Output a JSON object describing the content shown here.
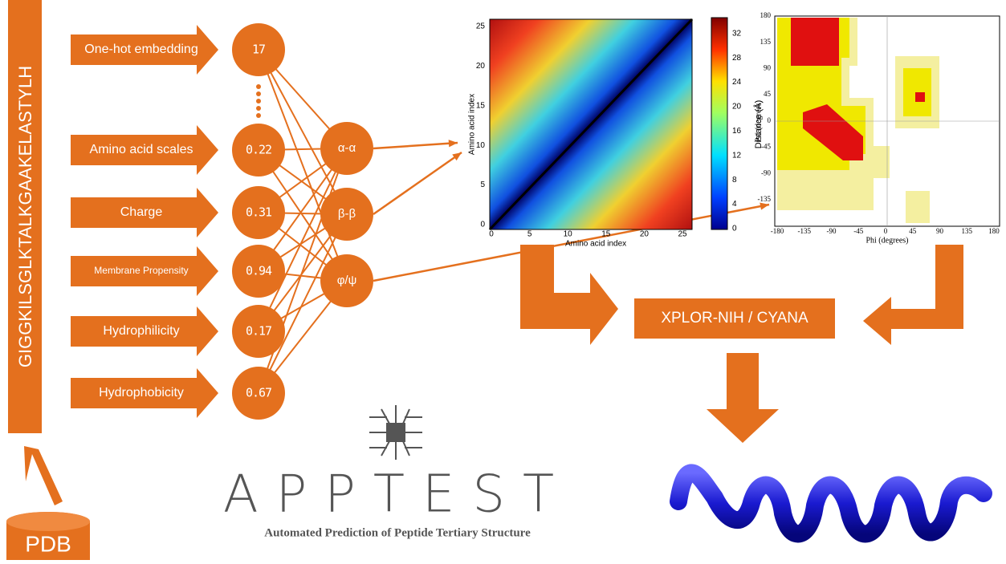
{
  "sequence": "GIGGKILSGLKTALKGAAKELASTYLH",
  "source": "PDB",
  "features": [
    {
      "label": "One-hot embedding",
      "value": "17"
    },
    {
      "label": "Amino acid scales",
      "value": "0.22"
    },
    {
      "label": "Charge",
      "value": "0.31"
    },
    {
      "label": "Membrane Propensity",
      "value": "0.94"
    },
    {
      "label": "Hydrophilicity",
      "value": "0.17"
    },
    {
      "label": "Hydrophobicity",
      "value": "0.67"
    }
  ],
  "outputs": [
    "α-α",
    "β-β",
    "φ/ψ"
  ],
  "distance_map": {
    "x_label": "Amino acid index",
    "y_label": "Amino acid index",
    "colorbar_label": "Distance (Å)",
    "xticks": [
      0,
      5,
      10,
      15,
      20,
      25
    ],
    "yticks": [
      0,
      5,
      10,
      15,
      20,
      25
    ],
    "colorbar_ticks": [
      0,
      4,
      8,
      12,
      16,
      20,
      24,
      28,
      32
    ]
  },
  "ramachandran": {
    "x_label": "Phi (degrees)",
    "y_label": "Psi (degrees)",
    "xticks": [
      -180,
      -135,
      -90,
      -45,
      0,
      45,
      90,
      135,
      180
    ],
    "yticks": [
      180,
      135,
      90,
      45,
      0,
      -45,
      -90,
      -135
    ]
  },
  "solver": "XPLOR-NIH / CYANA",
  "logo": {
    "name": "APPTEST",
    "tagline": "Automated Prediction of Peptide Tertiary Structure"
  }
}
